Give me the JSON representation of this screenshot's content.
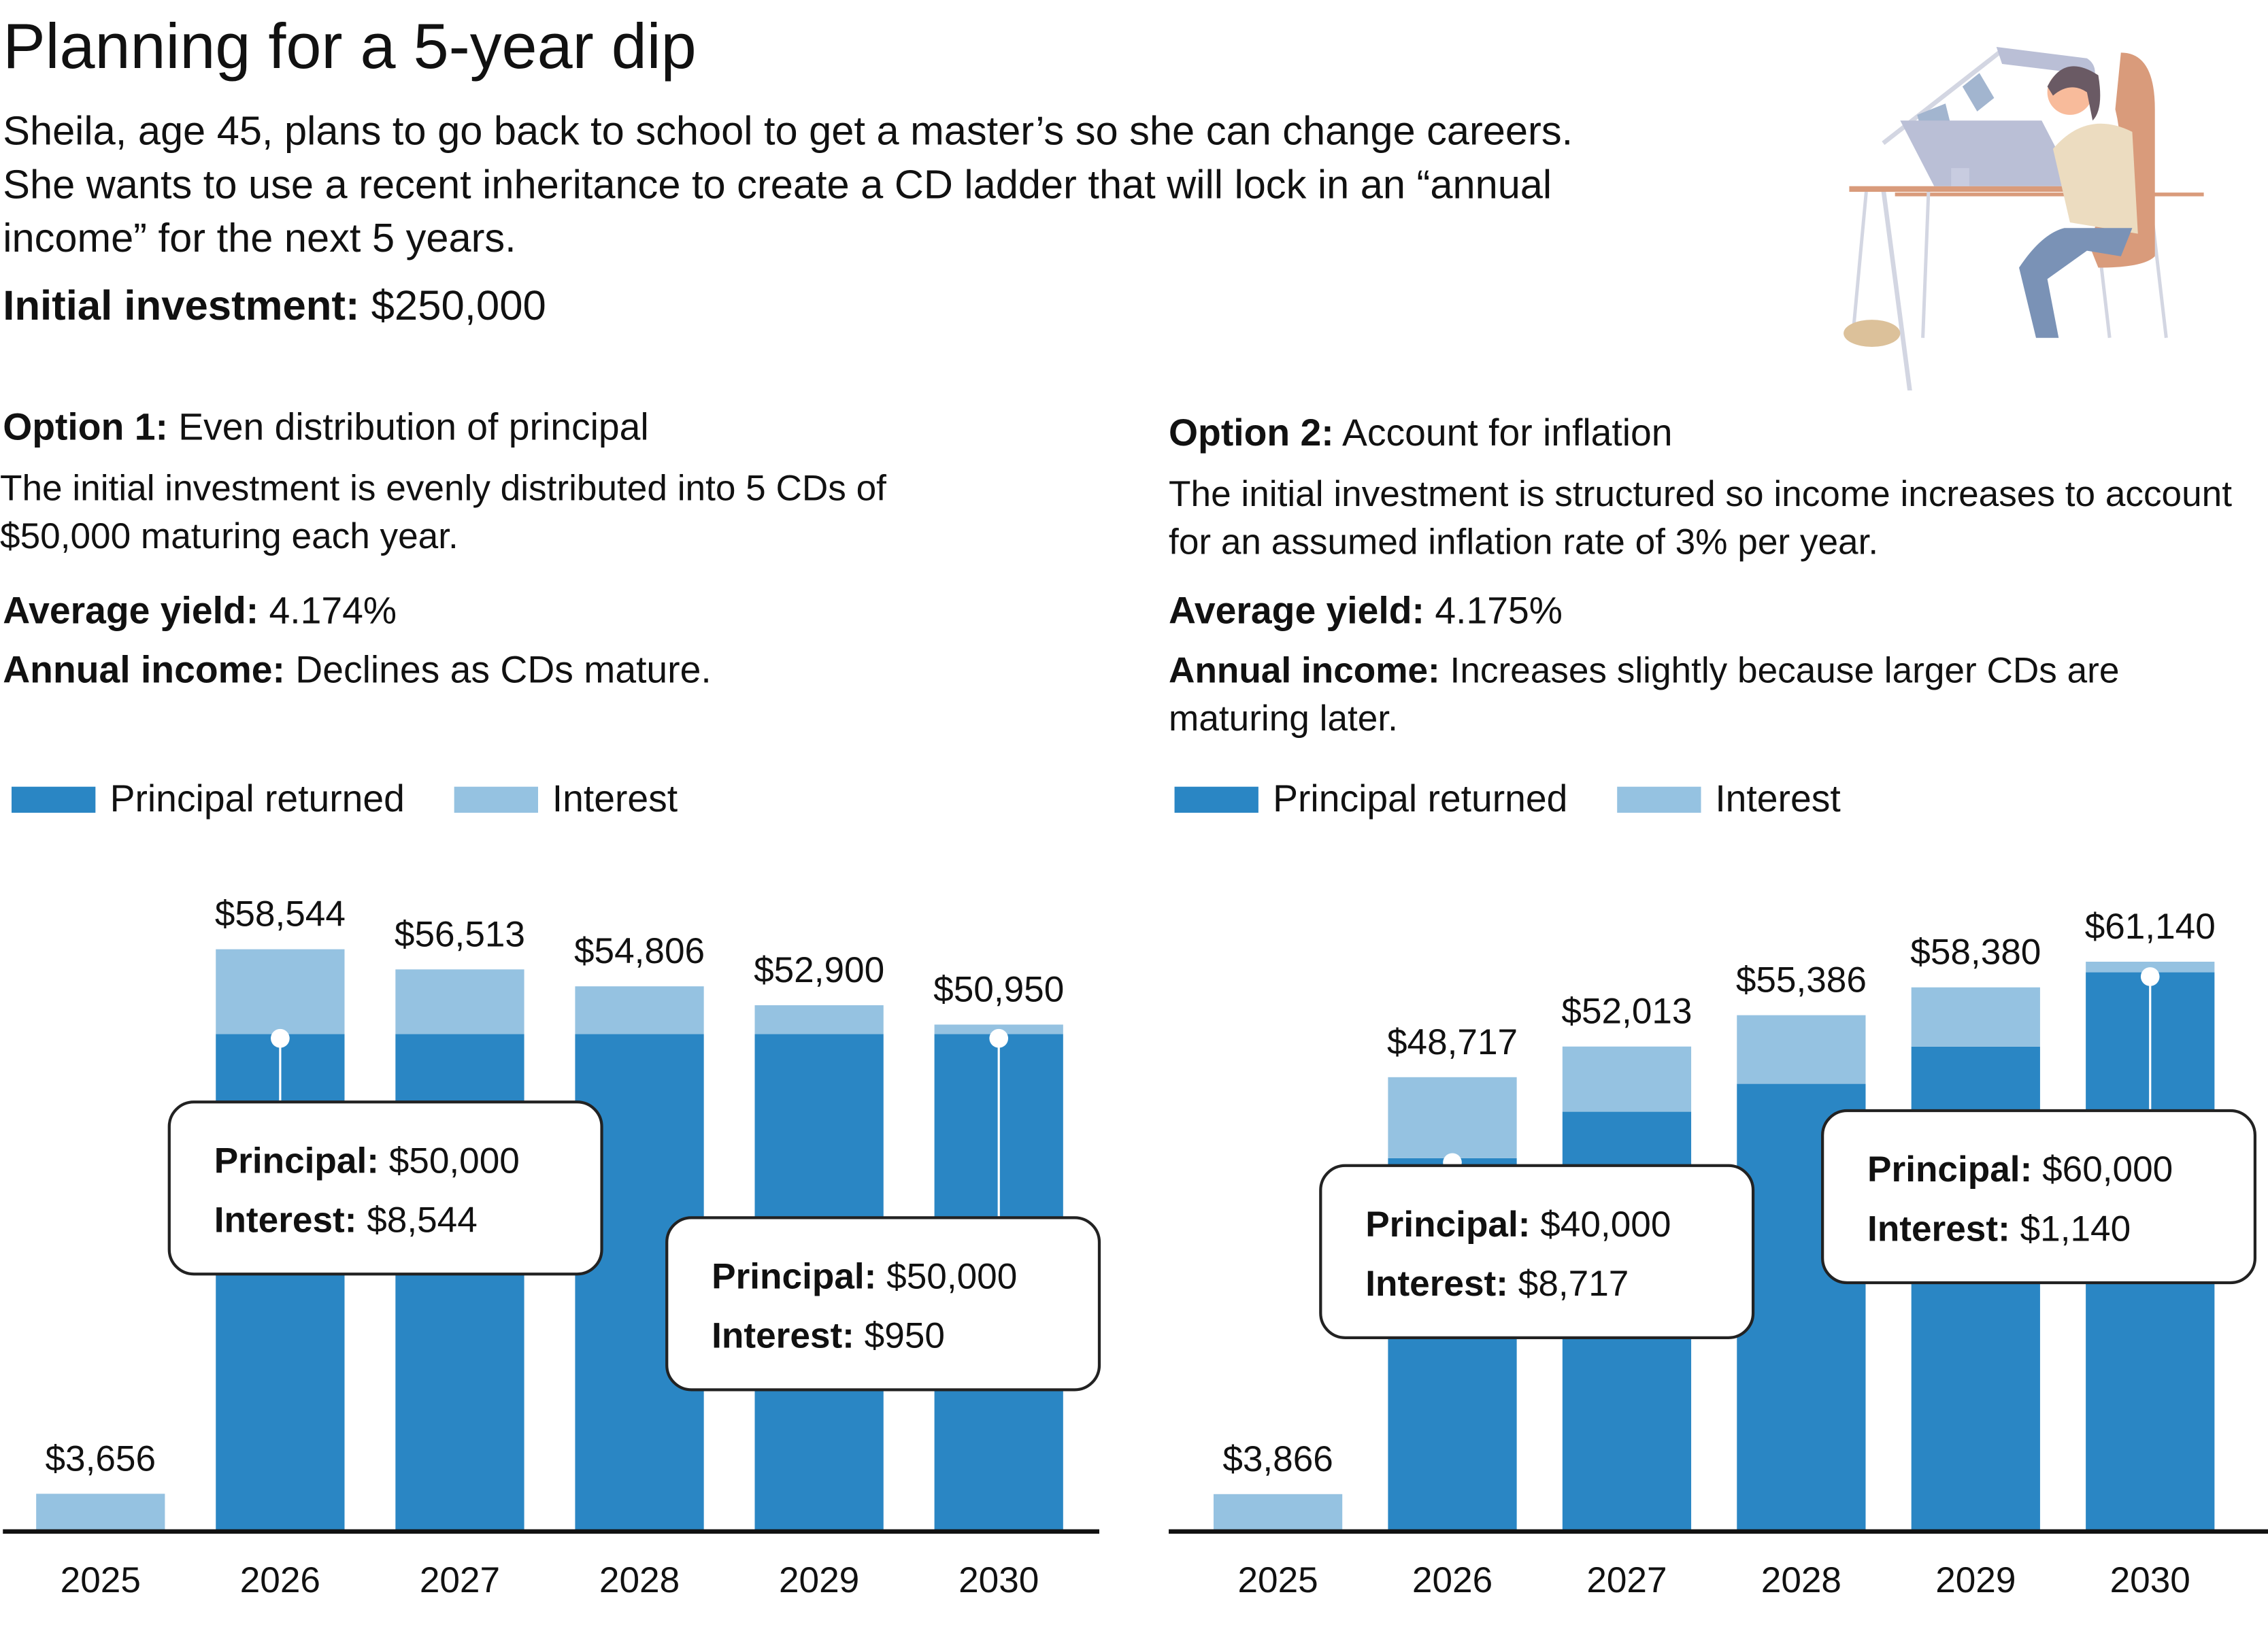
{
  "header": {
    "title": "Planning for a 5-year dip",
    "intro": "Sheila, age 45, plans to go back to school to get a master’s so she can change careers. She wants to use a recent inheritance to create a CD ladder that will lock in an “annual income” for the next 5 years.",
    "investment_label": "Initial investment:",
    "investment_value": "$250,000"
  },
  "options": [
    {
      "title_bold": "Option 1:",
      "title_rest": "Even distribution of principal",
      "description": "The initial investment is evenly distributed into 5 CDs of $50,000 maturing each year.",
      "yield_label": "Average yield:",
      "yield_value": "4.174%",
      "income_label": "Annual income:",
      "income_value": "Declines as CDs mature.",
      "callouts": [
        {
          "principal_label": "Principal:",
          "principal_value": "$50,000",
          "interest_label": "Interest:",
          "interest_value": "$8,544"
        },
        {
          "principal_label": "Principal:",
          "principal_value": "$50,000",
          "interest_label": "Interest:",
          "interest_value": "$950"
        }
      ]
    },
    {
      "title_bold": "Option 2:",
      "title_rest": "Account for inflation",
      "description": "The initial investment is structured so income increases to account for an assumed inflation rate of 3% per year.",
      "yield_label": "Average yield:",
      "yield_value": "4.175%",
      "income_label": "Annual income:",
      "income_value": "Increases slightly because larger CDs are maturing later.",
      "callouts": [
        {
          "principal_label": "Principal:",
          "principal_value": "$40,000",
          "interest_label": "Interest:",
          "interest_value": "$8,717"
        },
        {
          "principal_label": "Principal:",
          "principal_value": "$60,000",
          "interest_label": "Interest:",
          "interest_value": "$1,140"
        }
      ]
    }
  ],
  "colors": {
    "principal": "#2a86c4",
    "interest": "#95c2e1"
  },
  "chart_data": [
    {
      "type": "bar",
      "stacked": true,
      "categories": [
        "2025",
        "2026",
        "2027",
        "2028",
        "2029",
        "2030"
      ],
      "series": [
        {
          "name": "Principal returned",
          "values": [
            0,
            50000,
            50000,
            50000,
            50000,
            50000
          ]
        },
        {
          "name": "Interest",
          "values": [
            3656,
            8544,
            6513,
            4806,
            2900,
            950
          ]
        }
      ],
      "data_labels": [
        "$3,656",
        "$58,544",
        "$56,513",
        "$54,806",
        "$52,900",
        "$50,950"
      ],
      "ylim": [
        0,
        60000
      ],
      "legend": "top-left",
      "grid": false
    },
    {
      "type": "bar",
      "stacked": true,
      "categories": [
        "2025",
        "2026",
        "2027",
        "2028",
        "2029",
        "2030"
      ],
      "series": [
        {
          "name": "Principal returned",
          "values": [
            0,
            40000,
            45000,
            48000,
            52000,
            60000
          ]
        },
        {
          "name": "Interest",
          "values": [
            3866,
            8717,
            7013,
            7386,
            6380,
            1140
          ]
        }
      ],
      "data_labels": [
        "$3,866",
        "$48,717",
        "$52,013",
        "$55,386",
        "$58,380",
        "$61,140"
      ],
      "ylim": [
        0,
        68000
      ],
      "legend": "top-left",
      "grid": false
    }
  ]
}
